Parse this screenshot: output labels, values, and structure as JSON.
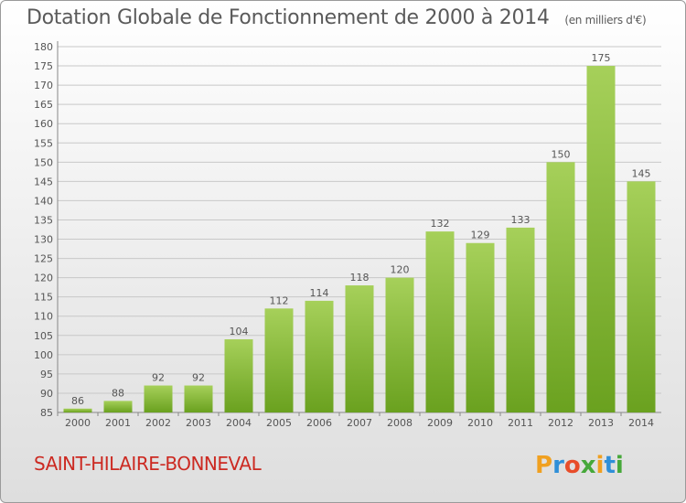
{
  "chart_data": {
    "type": "bar",
    "title": "Dotation Globale de Fonctionnement de 2000 à 2014",
    "subtitle": "(en milliers d'€)",
    "categories": [
      "2000",
      "2001",
      "2002",
      "2003",
      "2004",
      "2005",
      "2006",
      "2007",
      "2008",
      "2009",
      "2010",
      "2011",
      "2012",
      "2013",
      "2014"
    ],
    "values": [
      86,
      88,
      92,
      92,
      104,
      112,
      114,
      118,
      120,
      132,
      129,
      133,
      150,
      175,
      145
    ],
    "ylim": [
      85,
      180
    ],
    "yticks": [
      85,
      90,
      95,
      100,
      105,
      110,
      115,
      120,
      125,
      130,
      135,
      140,
      145,
      150,
      155,
      160,
      165,
      170,
      175,
      180
    ],
    "grid": true,
    "colors": {
      "bar_top": "#a6d05a",
      "bar_bottom": "#6aa11f",
      "text": "#555555",
      "city": "#cc2a22"
    }
  },
  "footer": {
    "city": "SAINT-HILAIRE-BONNEVAL",
    "logo_text": "Proxiti"
  },
  "logo_colors": [
    "#f0a020",
    "#2f8fd8",
    "#e84d2a",
    "#46a83a",
    "#f0a020",
    "#2f8fd8",
    "#46a83a"
  ]
}
